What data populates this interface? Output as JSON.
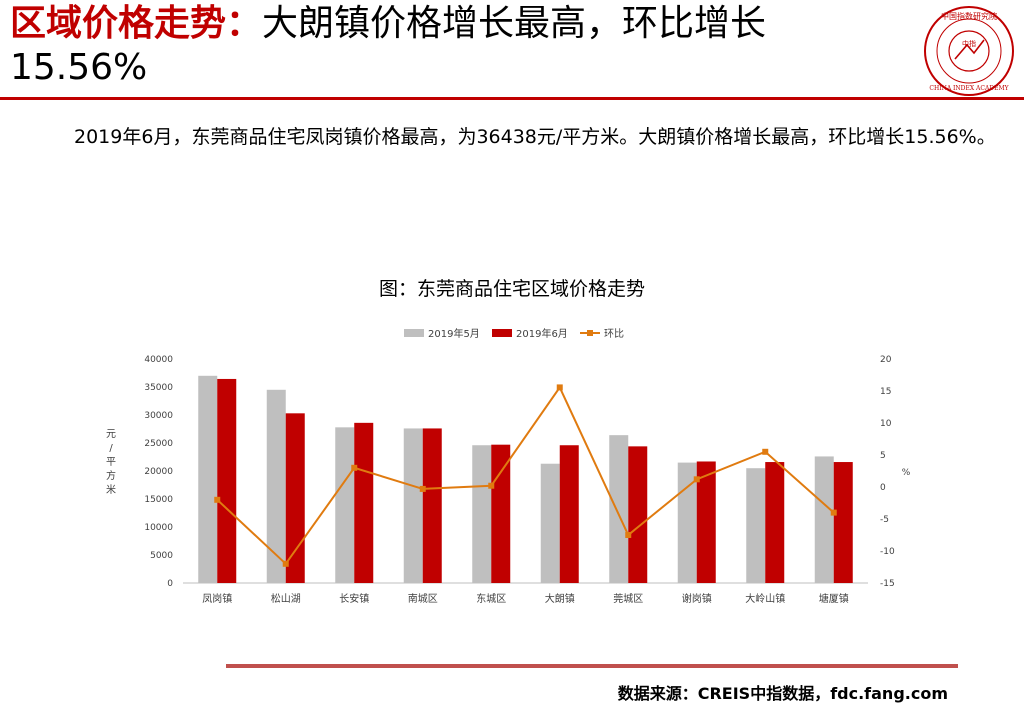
{
  "header": {
    "title_highlight": "区域价格走势：",
    "title_rest": "大朗镇价格增长最高，环比增长",
    "title_value": "15.56%"
  },
  "logo": {
    "top_text": "中国指数研究院",
    "center_text": "中指",
    "bottom_text": "CHINA INDEX ACADEMY"
  },
  "body_text": "2019年6月，东莞商品住宅凤岗镇价格最高，为36438元/平方米。大朗镇价格增长最高，环比增长15.56%。",
  "chart_data": {
    "type": "bar",
    "title": "图：东莞商品住宅区域价格走势",
    "categories": [
      "凤岗镇",
      "松山湖",
      "长安镇",
      "南城区",
      "东城区",
      "大朗镇",
      "莞城区",
      "谢岗镇",
      "大岭山镇",
      "塘厦镇"
    ],
    "series": [
      {
        "name": "2019年5月",
        "type": "bar",
        "axis": "left",
        "color": "#bfbfbf",
        "values": [
          37000,
          34500,
          27800,
          27600,
          24600,
          21300,
          26400,
          21500,
          20500,
          22600
        ]
      },
      {
        "name": "2019年6月",
        "type": "bar",
        "axis": "left",
        "color": "#c00000",
        "values": [
          36438,
          30300,
          28600,
          27600,
          24700,
          24600,
          24400,
          21700,
          21600,
          21600
        ]
      },
      {
        "name": "环比",
        "type": "line",
        "axis": "right",
        "color": "#e07b10",
        "values": [
          -2.0,
          -12.0,
          3.0,
          -0.3,
          0.2,
          15.56,
          -7.5,
          1.2,
          5.5,
          -4.0
        ]
      }
    ],
    "ylabel": "元/平方米",
    "ylim": [
      0,
      40000
    ],
    "yticks": [
      0,
      5000,
      10000,
      15000,
      20000,
      25000,
      30000,
      35000,
      40000
    ],
    "y2label": "%",
    "y2lim": [
      -15,
      20
    ],
    "y2ticks": [
      -15,
      -10,
      -5,
      0,
      5,
      10,
      15,
      20
    ],
    "legend_position": "top-center",
    "grid": false
  },
  "footer": {
    "source": "数据来源：CREIS中指数据，fdc.fang.com"
  }
}
